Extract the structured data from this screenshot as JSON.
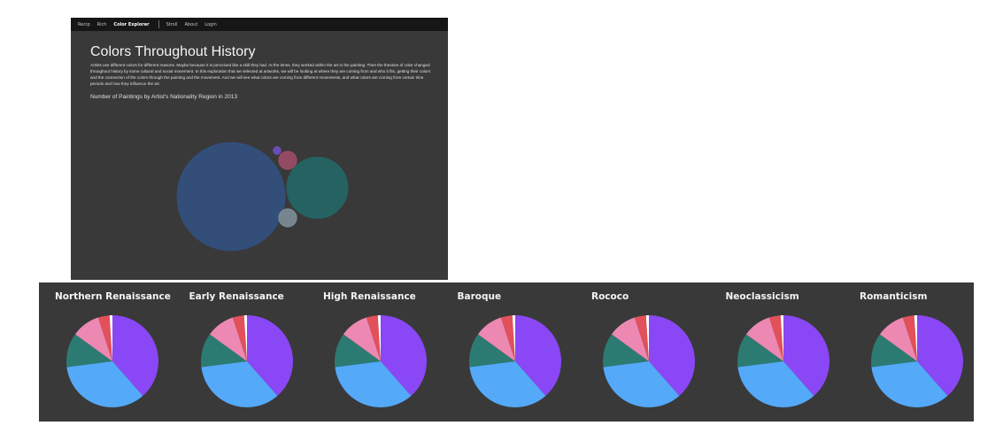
{
  "nav": {
    "items": [
      "Recip",
      "Rich",
      "Color Explorer",
      "Stroll",
      "About",
      "Login"
    ],
    "active_index": 2
  },
  "page": {
    "title": "Colors Throughout History",
    "intro": "Artists use different colors for different reasons. Maybe because it is perceived like a skill they had. At the times, they worked within the art in the painting. Then the theories of color changed throughout history by some cultural and social movement. In this exploration that we selected at artworks, we will be looking at where they are coming from and who it fits, getting their colors and the connection of the colors through the painting and the movement. And we will see what colors are coming from different movements, and what colors are coming from certain time periods and how they influence the art."
  },
  "chart_data": [
    {
      "type": "bubble",
      "title": "Number of Paintings by Artist's Nationality Region in 2013",
      "bubbles": [
        {
          "label": "",
          "value": 1000,
          "color": "#33507f"
        },
        {
          "label": "",
          "value": 320,
          "color": "#256665"
        },
        {
          "label": "",
          "value": 28,
          "color": "#9a4d67"
        },
        {
          "label": "",
          "value": 28,
          "color": "#7d8d96"
        },
        {
          "label": "",
          "value": 5,
          "color": "#6e4fc1"
        }
      ]
    },
    {
      "type": "pie",
      "series_colors": [
        "#8a47f5",
        "#54a9f9",
        "#2c7b72",
        "#ec88b2",
        "#e25059",
        "#ffffff"
      ],
      "start": "top, clockwise",
      "charts": [
        {
          "title": "Northern Renaissance",
          "values": [
            0.385,
            0.345,
            0.12,
            0.1,
            0.04,
            0.01
          ]
        },
        {
          "title": "Early Renaissance",
          "values": [
            0.385,
            0.345,
            0.12,
            0.1,
            0.04,
            0.01
          ]
        },
        {
          "title": "High Renaissance",
          "values": [
            0.385,
            0.345,
            0.12,
            0.1,
            0.04,
            0.01
          ]
        },
        {
          "title": "Baroque",
          "values": [
            0.385,
            0.345,
            0.12,
            0.1,
            0.04,
            0.01
          ]
        },
        {
          "title": "Rococo",
          "values": [
            0.385,
            0.345,
            0.12,
            0.1,
            0.04,
            0.01
          ]
        },
        {
          "title": "Neoclassicism",
          "values": [
            0.385,
            0.345,
            0.12,
            0.1,
            0.04,
            0.01
          ]
        },
        {
          "title": "Romanticism",
          "values": [
            0.385,
            0.345,
            0.12,
            0.1,
            0.04,
            0.01
          ]
        }
      ]
    }
  ]
}
